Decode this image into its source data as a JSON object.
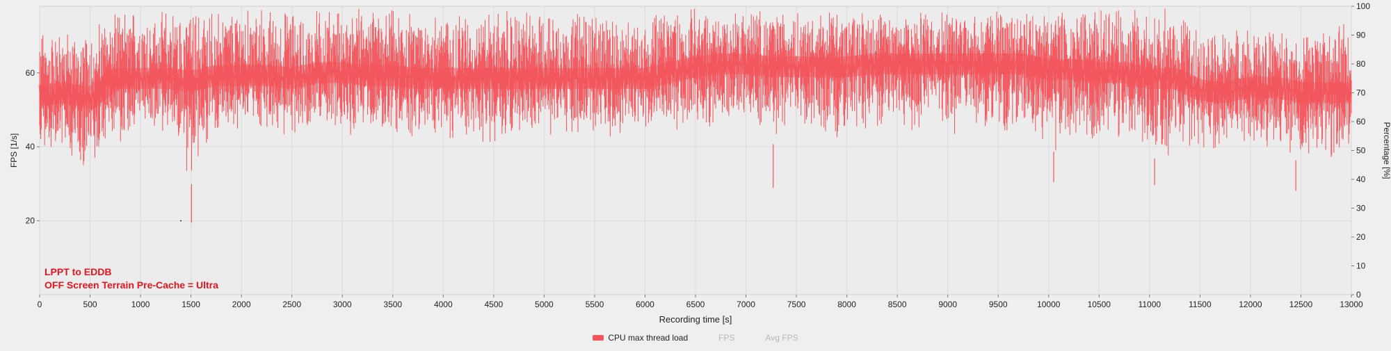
{
  "colors": {
    "series": "#f2545b",
    "annotation": "#e8131d",
    "background": "#efefef",
    "plot_background": "#ececec",
    "grid": "#d9d9d9",
    "legend_disabled": "#b5b5b5"
  },
  "annotation": {
    "line1": "LPPT to EDDB",
    "line2": "OFF Screen Terrain Pre-Cache = Ultra"
  },
  "legend": {
    "items": [
      {
        "label": "CPU max thread load",
        "enabled": true
      },
      {
        "label": "FPS",
        "enabled": false
      },
      {
        "label": "Avg FPS",
        "enabled": false
      }
    ]
  },
  "chart_data": {
    "type": "line",
    "title": "",
    "xlabel": "Recording time [s]",
    "ylabel_left": "FPS [1/s]",
    "ylabel_right": "Percentage [%]",
    "xlim": [
      0,
      13000
    ],
    "ylim_left": [
      0,
      78
    ],
    "ylim_right": [
      0,
      100
    ],
    "x_ticks": [
      "0",
      "500",
      "1000",
      "1500",
      "2000",
      "2500",
      "3000",
      "3500",
      "4000",
      "4500",
      "5000",
      "5500",
      "6000",
      "6500",
      "7000",
      "7500",
      "8000",
      "8500",
      "9000",
      "9500",
      "10000",
      "10500",
      "11000",
      "11500",
      "12000",
      "12500",
      "13000"
    ],
    "y_left_ticks": [
      "20",
      "40",
      "60"
    ],
    "y_right_ticks": [
      "0",
      "10",
      "20",
      "30",
      "40",
      "50",
      "60",
      "70",
      "80",
      "90",
      "100"
    ],
    "grid": true,
    "legend_position": "bottom-center",
    "series": [
      {
        "name": "CPU max thread load",
        "axis": "right",
        "x": [
          0,
          250,
          500,
          750,
          1000,
          1250,
          1500,
          1750,
          2000,
          2250,
          2500,
          2750,
          3000,
          3250,
          3500,
          3750,
          4000,
          4250,
          4500,
          4750,
          5000,
          5250,
          5500,
          5750,
          6000,
          6250,
          6500,
          6750,
          7000,
          7250,
          7500,
          7750,
          8000,
          8250,
          8500,
          8750,
          9000,
          9250,
          9500,
          9750,
          10000,
          10250,
          10500,
          10750,
          11000,
          11250,
          11500,
          11750,
          12000,
          12250,
          12500,
          12750,
          13000
        ],
        "min": [
          46,
          44,
          41,
          52,
          55,
          56,
          38,
          55,
          56,
          55,
          53,
          56,
          54,
          54,
          55,
          53,
          52,
          51,
          50,
          53,
          55,
          53,
          53,
          55,
          56,
          56,
          54,
          57,
          57,
          52,
          55,
          55,
          53,
          54,
          54,
          55,
          54,
          55,
          52,
          52,
          49,
          52,
          50,
          51,
          47,
          48,
          48,
          49,
          51,
          49,
          46,
          46,
          48
        ],
        "max": [
          93,
          92,
          94,
          100,
          100,
          100,
          100,
          100,
          100,
          100,
          100,
          100,
          100,
          100,
          100,
          100,
          100,
          100,
          100,
          100,
          100,
          100,
          100,
          100,
          100,
          100,
          100,
          100,
          100,
          100,
          100,
          100,
          100,
          100,
          100,
          100,
          100,
          100,
          100,
          100,
          100,
          100,
          100,
          100,
          100,
          100,
          95,
          92,
          94,
          94,
          94,
          95,
          95
        ],
        "mean": [
          69,
          70,
          68,
          75,
          75,
          75,
          74,
          76,
          76,
          76,
          75,
          77,
          77,
          76,
          76,
          75,
          75,
          75,
          75,
          75,
          75,
          75,
          75,
          75,
          75,
          77,
          79,
          80,
          80,
          79,
          79,
          79,
          79,
          80,
          80,
          80,
          80,
          80,
          80,
          80,
          78,
          78,
          77,
          77,
          75,
          75,
          71,
          70,
          72,
          72,
          70,
          70,
          70
        ]
      },
      {
        "name": "FPS",
        "axis": "left",
        "hidden": true
      },
      {
        "name": "Avg FPS",
        "axis": "left",
        "hidden": true
      }
    ],
    "outliers": [
      {
        "series": "CPU max thread load",
        "x": 1505,
        "y": 25
      },
      {
        "series": "CPU max thread load",
        "x": 7270,
        "y": 37
      },
      {
        "series": "CPU max thread load",
        "x": 10050,
        "y": 39
      },
      {
        "series": "CPU max thread load",
        "x": 11050,
        "y": 38
      },
      {
        "series": "CPU max thread load",
        "x": 12450,
        "y": 36
      }
    ]
  }
}
